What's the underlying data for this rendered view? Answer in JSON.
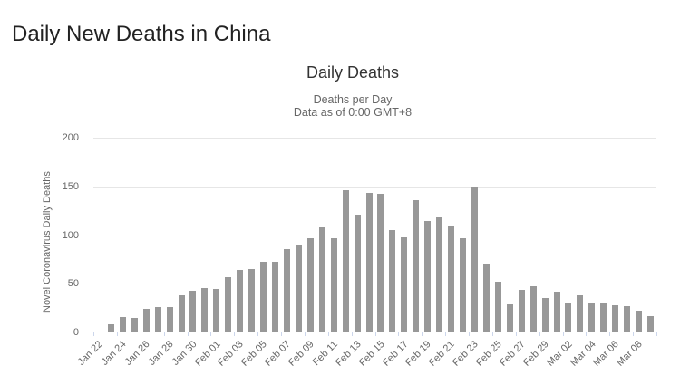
{
  "page": {
    "title": "Daily New Deaths in China"
  },
  "chart": {
    "title": "Daily Deaths",
    "subtitle": [
      "Deaths per Day",
      "Data as of 0:00 GMT+8"
    ],
    "y_axis_title": "Novel Coronavirus Daily Deaths"
  },
  "colors": {
    "bar": "#989898",
    "grid": "#e6e6e6",
    "axis_line": "#ccd6eb",
    "axis_text": "#666666",
    "chart_title": "#333333",
    "page_title": "#222222"
  },
  "chart_data": {
    "type": "bar",
    "title": "Daily Deaths",
    "subtitle": "Deaths per Day — Data as of 0:00 GMT+8",
    "xlabel": "",
    "ylabel": "Novel Coronavirus Daily Deaths",
    "ylim": [
      0,
      200
    ],
    "yticks": [
      0,
      50,
      100,
      150,
      200
    ],
    "grid": true,
    "legend": false,
    "xtick_label_every": 2,
    "categories": [
      "Jan 22",
      "Jan 23",
      "Jan 24",
      "Jan 25",
      "Jan 26",
      "Jan 27",
      "Jan 28",
      "Jan 29",
      "Jan 30",
      "Jan 31",
      "Feb 01",
      "Feb 02",
      "Feb 03",
      "Feb 04",
      "Feb 05",
      "Feb 06",
      "Feb 07",
      "Feb 08",
      "Feb 09",
      "Feb 10",
      "Feb 11",
      "Feb 12",
      "Feb 13",
      "Feb 14",
      "Feb 15",
      "Feb 16",
      "Feb 17",
      "Feb 18",
      "Feb 19",
      "Feb 20",
      "Feb 21",
      "Feb 22",
      "Feb 23",
      "Feb 24",
      "Feb 25",
      "Feb 26",
      "Feb 27",
      "Feb 28",
      "Feb 29",
      "Mar 01",
      "Mar 02",
      "Mar 03",
      "Mar 04",
      "Mar 05",
      "Mar 06",
      "Mar 07",
      "Mar 08",
      "Mar 09"
    ],
    "values": [
      0,
      8,
      16,
      15,
      24,
      26,
      26,
      38,
      43,
      46,
      45,
      57,
      64,
      65,
      73,
      73,
      86,
      89,
      97,
      108,
      97,
      146,
      121,
      143,
      142,
      105,
      98,
      136,
      114,
      118,
      109,
      97,
      150,
      71,
      52,
      29,
      44,
      47,
      35,
      42,
      31,
      38,
      31,
      30,
      28,
      27,
      22,
      17
    ],
    "shown_xtick_labels": [
      "Jan 22",
      "Jan 24",
      "Jan 26",
      "Jan 28",
      "Jan 30",
      "Feb 01",
      "Feb 03",
      "Feb 05",
      "Feb 07",
      "Feb 09",
      "Feb 11",
      "Feb 13",
      "Feb 15",
      "Feb 17",
      "Feb 19",
      "Feb 21",
      "Feb 23",
      "Feb 25",
      "Feb 27",
      "Feb 29",
      "Mar 02",
      "Mar 04",
      "Mar 06",
      "Mar 08"
    ]
  }
}
